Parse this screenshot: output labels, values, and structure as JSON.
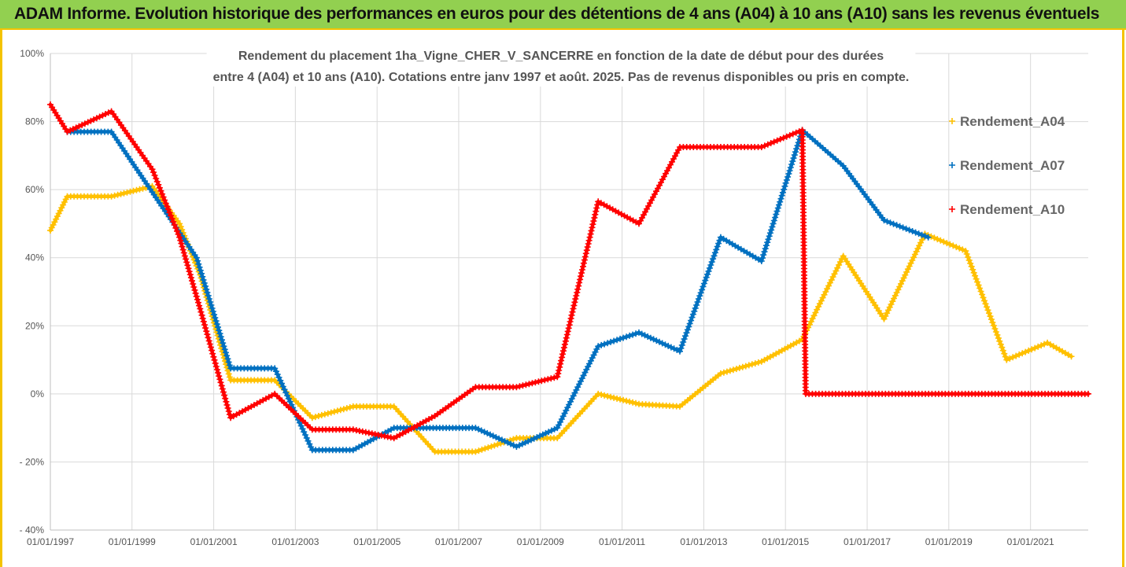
{
  "banner": {
    "title": "ADAM Informe. Evolution historique des performances en euros pour des détentions de 4 ans (A04) à 10 ans (A10) sans les revenus éventuels"
  },
  "colors": {
    "banner_bg": "#92d050",
    "frame": "#f4c300",
    "A04": "#ffc000",
    "A07": "#0070c0",
    "A10": "#ff0000"
  },
  "chart_data": {
    "type": "line",
    "title_lines": [
      "Rendement du placement 1ha_Vigne_CHER_V_SANCERRE en fonction de la date de début pour des durées",
      "entre 4 (A04) et 10 ans (A10). Cotations entre janv 1997 et août. 2025. Pas de revenus disponibles ou pris en compte."
    ],
    "xlabel": "",
    "ylabel": "",
    "x_range": [
      "1997-01-01",
      "2022-06-01"
    ],
    "x_ticks": [
      "01/01/1997",
      "01/01/1999",
      "01/01/2001",
      "01/01/2003",
      "01/01/2005",
      "01/01/2007",
      "01/01/2009",
      "01/01/2011",
      "01/01/2013",
      "01/01/2015",
      "01/01/2017",
      "01/01/2019",
      "01/01/2021"
    ],
    "ylim": [
      -40,
      100
    ],
    "y_ticks": [
      -40,
      -20,
      0,
      20,
      40,
      60,
      80,
      100
    ],
    "y_tick_labels": [
      "- 40%",
      "- 20%",
      "0%",
      "20%",
      "40%",
      "60%",
      "80%",
      "100%"
    ],
    "grid": true,
    "legend_position": "right",
    "series": [
      {
        "name": "Rendement_A04",
        "color": "#ffc000",
        "points": [
          [
            "1997-01-01",
            48
          ],
          [
            "1997-06-01",
            58
          ],
          [
            "1998-07-01",
            58
          ],
          [
            "1999-07-01",
            61
          ],
          [
            "2000-03-01",
            50
          ],
          [
            "2000-09-01",
            35
          ],
          [
            "2001-06-01",
            4
          ],
          [
            "2002-07-01",
            4
          ],
          [
            "2003-06-01",
            -7
          ],
          [
            "2004-06-01",
            -3.7
          ],
          [
            "2005-06-01",
            -3.7
          ],
          [
            "2006-06-01",
            -17
          ],
          [
            "2007-06-01",
            -17
          ],
          [
            "2008-06-01",
            -13
          ],
          [
            "2009-06-01",
            -13
          ],
          [
            "2010-06-01",
            0
          ],
          [
            "2011-06-01",
            -3
          ],
          [
            "2012-06-01",
            -3.7
          ],
          [
            "2013-06-01",
            6
          ],
          [
            "2014-06-01",
            9.5
          ],
          [
            "2015-06-01",
            16
          ],
          [
            "2016-06-01",
            40.5
          ],
          [
            "2017-06-01",
            22
          ],
          [
            "2018-06-01",
            47
          ],
          [
            "2019-06-01",
            42
          ],
          [
            "2020-06-01",
            10
          ],
          [
            "2021-06-01",
            15
          ],
          [
            "2022-01-01",
            11
          ]
        ]
      },
      {
        "name": "Rendement_A07",
        "color": "#0070c0",
        "points": [
          [
            "1997-06-01",
            77
          ],
          [
            "1998-07-01",
            77
          ],
          [
            "2000-08-01",
            40
          ],
          [
            "2001-06-01",
            7.5
          ],
          [
            "2002-07-01",
            7.5
          ],
          [
            "2003-06-01",
            -16.5
          ],
          [
            "2004-06-01",
            -16.5
          ],
          [
            "2005-06-01",
            -10
          ],
          [
            "2007-06-01",
            -10
          ],
          [
            "2008-06-01",
            -15.5
          ],
          [
            "2009-06-01",
            -10
          ],
          [
            "2010-06-01",
            14
          ],
          [
            "2011-06-01",
            18
          ],
          [
            "2012-06-01",
            12.5
          ],
          [
            "2013-06-01",
            46
          ],
          [
            "2014-06-01",
            39
          ],
          [
            "2015-06-01",
            77.5
          ],
          [
            "2016-06-01",
            67
          ],
          [
            "2017-06-01",
            51
          ],
          [
            "2018-07-01",
            46
          ]
        ]
      },
      {
        "name": "Rendement_A10",
        "color": "#ff0000",
        "points": [
          [
            "1997-01-01",
            85
          ],
          [
            "1997-06-01",
            77
          ],
          [
            "1998-07-01",
            83
          ],
          [
            "1999-07-01",
            66
          ],
          [
            "2000-03-01",
            46
          ],
          [
            "2000-09-01",
            25
          ],
          [
            "2001-06-01",
            -7
          ],
          [
            "2002-07-01",
            0
          ],
          [
            "2003-06-01",
            -10.5
          ],
          [
            "2004-06-01",
            -10.5
          ],
          [
            "2005-06-01",
            -13
          ],
          [
            "2006-06-01",
            -6.5
          ],
          [
            "2007-06-01",
            2
          ],
          [
            "2008-06-01",
            2
          ],
          [
            "2009-06-01",
            5
          ],
          [
            "2010-06-01",
            56.5
          ],
          [
            "2011-06-01",
            50
          ],
          [
            "2012-06-01",
            72.5
          ],
          [
            "2013-06-01",
            72.5
          ],
          [
            "2014-06-01",
            72.5
          ],
          [
            "2015-06-01",
            77.5
          ],
          [
            "2015-07-01",
            0
          ],
          [
            "2022-06-01",
            0
          ]
        ]
      }
    ]
  }
}
